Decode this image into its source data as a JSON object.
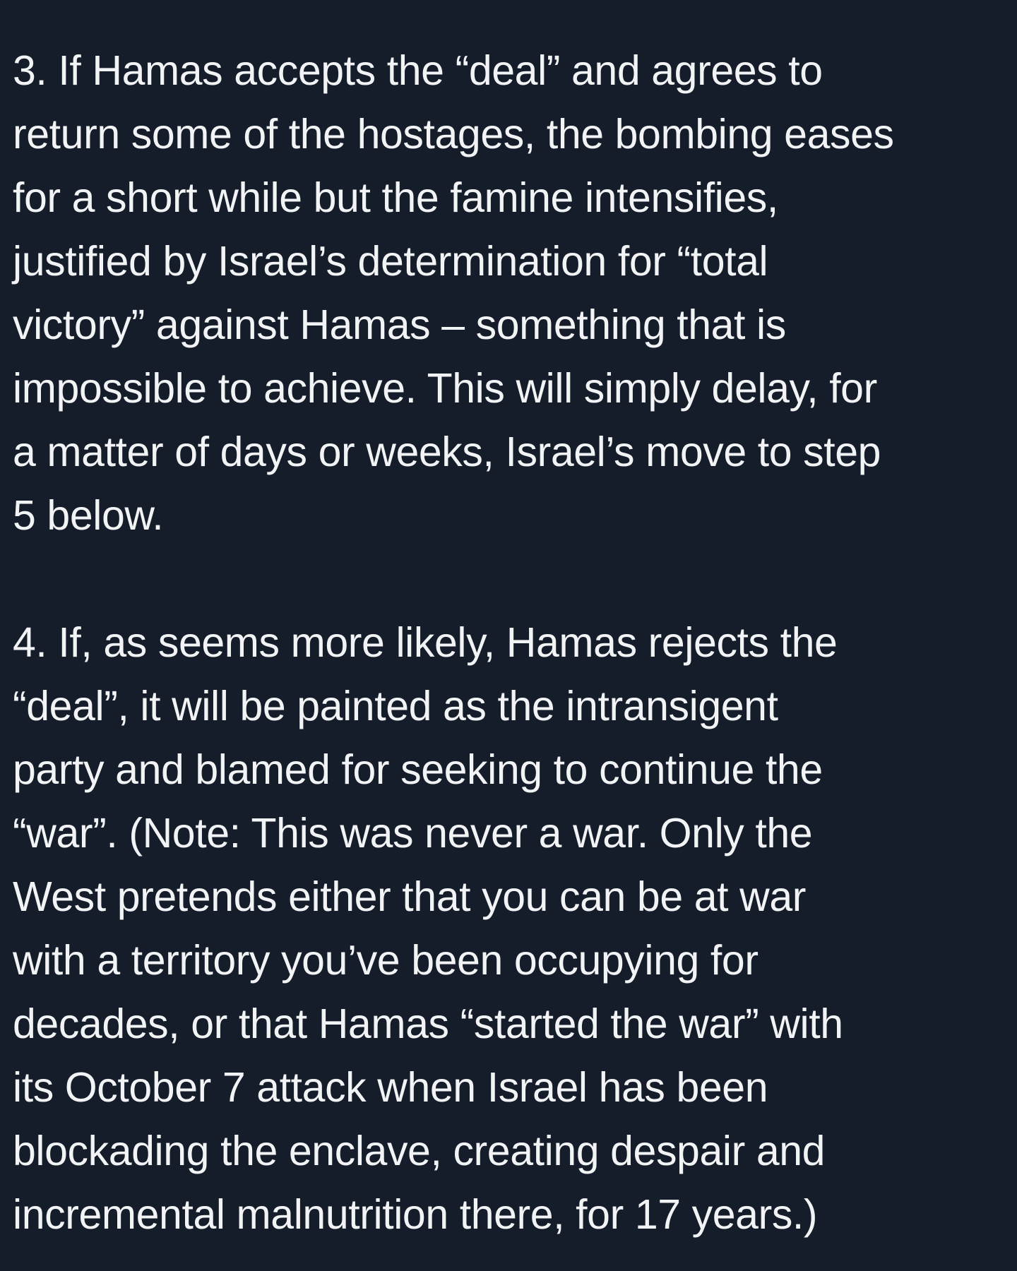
{
  "post": {
    "paragraph_3": {
      "lines": [
        "3. If Hamas accepts the “deal” and agrees to",
        "return some of the hostages, the bombing eases",
        "for a short while but the famine intensifies,",
        "justified by Israel’s determination for “total",
        "victory” against Hamas – something that is",
        "impossible to achieve. This will simply delay, for",
        "a matter of days or weeks, Israel’s move to step",
        "5 below."
      ]
    },
    "paragraph_4": {
      "lines": [
        "4. If, as seems more likely, Hamas rejects the",
        "“deal”, it will be painted as the intransigent",
        "party and blamed for seeking to continue the",
        "“war”. (Note: This was never a war. Only the",
        "West pretends either that you can be at war",
        "with a territory you’ve been occupying for",
        "decades, or that Hamas “started the war” with",
        "its October 7 attack when Israel has been",
        "blockading the enclave, creating despair and",
        "incremental malnutrition there, for 17 years.)"
      ]
    }
  }
}
